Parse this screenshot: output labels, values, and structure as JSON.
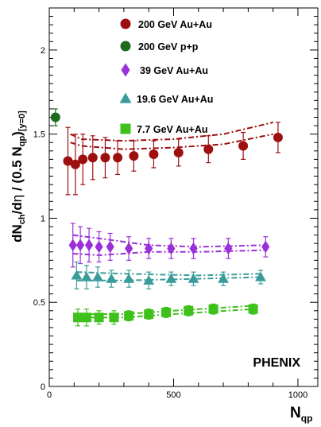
{
  "chart_data": {
    "type": "scatter",
    "title": "",
    "ylabel_main": "dN",
    "ylabel_sub1": "ch",
    "ylabel_mid": "/d",
    "ylabel_eta": "η",
    "ylabel_tail": " / (0.5 N",
    "ylabel_sub2": "qp",
    "ylabel_close": ")",
    "ylabel_sub3": "[y=0]",
    "xlabel": "N",
    "xlabel_sub": "qp",
    "brand": "PHENIX",
    "xlim": [
      0,
      1080
    ],
    "ylim": [
      0,
      2.25
    ],
    "x_ticks": [
      0,
      500,
      1000
    ],
    "y_ticks": [
      0,
      0.5,
      1,
      1.5,
      2
    ],
    "grid": false,
    "legend_position": "top-right",
    "series": [
      {
        "name": "200 GeV Au+Au",
        "marker": "circle",
        "color": "#9e0f10",
        "x": [
          75,
          105,
          135,
          175,
          225,
          275,
          340,
          420,
          520,
          640,
          780,
          920
        ],
        "y": [
          1.34,
          1.32,
          1.35,
          1.36,
          1.36,
          1.36,
          1.37,
          1.38,
          1.39,
          1.41,
          1.43,
          1.48
        ],
        "err": [
          0.2,
          0.18,
          0.15,
          0.13,
          0.12,
          0.1,
          0.09,
          0.08,
          0.08,
          0.08,
          0.08,
          0.09
        ],
        "band_lower": [
          [
            85,
            1.45
          ],
          [
            130,
            1.43
          ],
          [
            300,
            1.41
          ],
          [
            500,
            1.42
          ],
          [
            700,
            1.44
          ],
          [
            900,
            1.5
          ]
        ],
        "band_upper": [
          [
            85,
            1.5
          ],
          [
            130,
            1.47
          ],
          [
            300,
            1.46
          ],
          [
            500,
            1.47
          ],
          [
            700,
            1.5
          ],
          [
            900,
            1.57
          ]
        ]
      },
      {
        "name": "200 GeV p+p",
        "marker": "circle",
        "color": "#1d6b1d",
        "x": [
          25
        ],
        "y": [
          1.6
        ],
        "err": [
          0.05
        ]
      },
      {
        "name": "39 GeV Au+Au",
        "marker": "diamond",
        "color": "#9b30d9",
        "x": [
          95,
          125,
          160,
          200,
          245,
          320,
          400,
          490,
          580,
          720,
          870
        ],
        "y": [
          0.84,
          0.84,
          0.84,
          0.83,
          0.83,
          0.82,
          0.82,
          0.82,
          0.82,
          0.82,
          0.83
        ],
        "err": [
          0.13,
          0.11,
          0.1,
          0.09,
          0.08,
          0.07,
          0.06,
          0.06,
          0.06,
          0.06,
          0.06
        ],
        "band_lower": [
          [
            95,
            0.79
          ],
          [
            200,
            0.78
          ],
          [
            400,
            0.8
          ],
          [
            600,
            0.8
          ],
          [
            870,
            0.81
          ]
        ],
        "band_upper": [
          [
            95,
            0.9
          ],
          [
            200,
            0.88
          ],
          [
            400,
            0.84
          ],
          [
            600,
            0.83
          ],
          [
            870,
            0.84
          ]
        ]
      },
      {
        "name": "19.6 GeV Au+Au",
        "marker": "triangle",
        "color": "#3a9c9a",
        "x": [
          110,
          150,
          195,
          250,
          320,
          400,
          490,
          580,
          700,
          850
        ],
        "y": [
          0.66,
          0.65,
          0.65,
          0.64,
          0.64,
          0.63,
          0.64,
          0.64,
          0.64,
          0.65
        ],
        "err": [
          0.08,
          0.07,
          0.06,
          0.05,
          0.05,
          0.05,
          0.04,
          0.04,
          0.04,
          0.04
        ],
        "band_lower": [
          [
            110,
            0.63
          ],
          [
            300,
            0.63
          ],
          [
            600,
            0.64
          ],
          [
            850,
            0.65
          ]
        ],
        "band_upper": [
          [
            110,
            0.68
          ],
          [
            300,
            0.67
          ],
          [
            600,
            0.66
          ],
          [
            850,
            0.67
          ]
        ]
      },
      {
        "name": "7.7 GeV Au+Au",
        "marker": "square",
        "color": "#3fc11b",
        "x": [
          115,
          150,
          200,
          260,
          320,
          400,
          470,
          560,
          660,
          820
        ],
        "y": [
          0.41,
          0.41,
          0.41,
          0.41,
          0.42,
          0.43,
          0.44,
          0.45,
          0.46,
          0.46
        ],
        "err": [
          0.05,
          0.05,
          0.04,
          0.04,
          0.03,
          0.03,
          0.03,
          0.03,
          0.03,
          0.03
        ],
        "band_lower": [
          [
            115,
            0.41
          ],
          [
            300,
            0.41
          ],
          [
            500,
            0.43
          ],
          [
            820,
            0.46
          ]
        ],
        "band_upper": [
          [
            115,
            0.43
          ],
          [
            300,
            0.43
          ],
          [
            500,
            0.45
          ],
          [
            820,
            0.48
          ]
        ]
      }
    ]
  }
}
